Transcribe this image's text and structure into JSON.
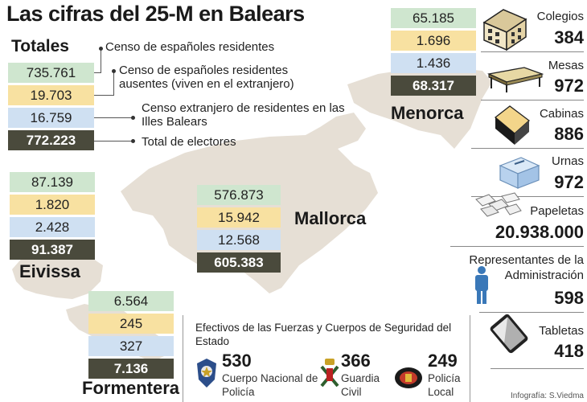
{
  "title": "Las cifras del 25-M en Balears",
  "totales": {
    "heading": "Totales",
    "values": [
      "735.761",
      "19.703",
      "16.759",
      "772.223"
    ]
  },
  "legend": [
    "Censo de españoles residentes",
    "Censo de españoles residentes ausentes (viven en el extranjero)",
    "Censo extranjero de residentes en las Illes Balears",
    "Total de electores"
  ],
  "islands": {
    "menorca": {
      "name": "Menorca",
      "values": [
        "65.185",
        "1.696",
        "1.436",
        "68.317"
      ]
    },
    "mallorca": {
      "name": "Mallorca",
      "values": [
        "576.873",
        "15.942",
        "12.568",
        "605.383"
      ]
    },
    "eivissa": {
      "name": "Eivissa",
      "values": [
        "87.139",
        "1.820",
        "2.428",
        "91.387"
      ]
    },
    "formentera": {
      "name": "Formentera",
      "values": [
        "6.564",
        "245",
        "327",
        "7.136"
      ]
    }
  },
  "stats": {
    "colegios": {
      "label": "Colegios",
      "value": "384",
      "icon": "school-building-icon"
    },
    "mesas": {
      "label": "Mesas",
      "value": "972",
      "icon": "table-icon"
    },
    "cabinas": {
      "label": "Cabinas",
      "value": "886",
      "icon": "voting-booth-icon"
    },
    "urnas": {
      "label": "Urnas",
      "value": "972",
      "icon": "ballot-box-icon"
    },
    "papeletas": {
      "label": "Papeletas",
      "value": "20.938.000",
      "icon": "ballot-papers-icon"
    },
    "representantes": {
      "label": "Representantes de la Administración",
      "value": "598",
      "icon": "person-icon"
    },
    "tabletas": {
      "label": "Tabletas",
      "value": "418",
      "icon": "tablet-icon"
    }
  },
  "fuerzas": {
    "title": "Efectivos de las Fuerzas y Cuerpos de Seguridad del Estado",
    "items": [
      {
        "value": "530",
        "label": "Cuerpo Nacional de Policía",
        "icon": "policia-nacional-badge-icon"
      },
      {
        "value": "366",
        "label": "Guardia Civil",
        "icon": "guardia-civil-emblem-icon"
      },
      {
        "value": "249",
        "label": "Policía Local",
        "icon": "policia-local-badge-icon"
      }
    ]
  },
  "credit": "Infografía: S.Viedma",
  "colors": {
    "green": "#cfe6cf",
    "yellow": "#f8e1a1",
    "blue": "#cfe0f2",
    "dark": "#4a4a3c",
    "map": "#e6dfd5"
  }
}
